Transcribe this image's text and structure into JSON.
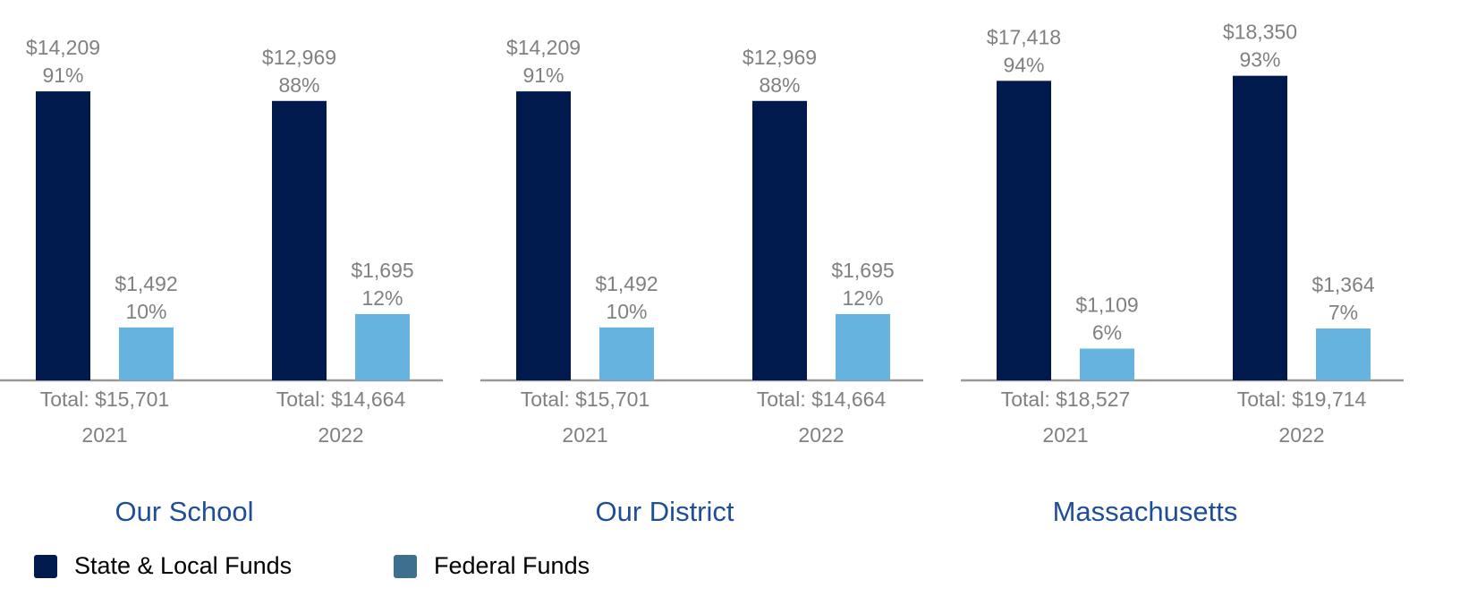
{
  "chart_data": [
    {
      "type": "bar",
      "title": "Our School",
      "categories": [
        "2021",
        "2022"
      ],
      "log": true,
      "ylim": [
        900,
        34000
      ],
      "totals": [
        15701,
        14664
      ],
      "total_labels": [
        "Total: $15,701",
        "Total: $14,664"
      ],
      "series": [
        {
          "name": "State & Local Funds",
          "color": "#001a4d",
          "legend_color": "#001a4d",
          "values": [
            14209,
            12969
          ],
          "value_labels": [
            "$14,209",
            "$12,969"
          ],
          "percents": [
            91,
            88
          ],
          "percent_labels": [
            "91%",
            "88%"
          ]
        },
        {
          "name": "Federal Funds",
          "color": "#66b3e0",
          "legend_color": "#3f6f8f",
          "values": [
            1492,
            1695
          ],
          "value_labels": [
            "$1,492",
            "$1,695"
          ],
          "percents": [
            10,
            12
          ],
          "percent_labels": [
            "10%",
            "12%"
          ]
        }
      ]
    },
    {
      "type": "bar",
      "title": "Our District",
      "categories": [
        "2021",
        "2022"
      ],
      "log": true,
      "ylim": [
        900,
        34000
      ],
      "totals": [
        15701,
        14664
      ],
      "total_labels": [
        "Total: $15,701",
        "Total: $14,664"
      ],
      "series": [
        {
          "color": "#001a4d",
          "values": [
            14209,
            12969
          ],
          "value_labels": [
            "$14,209",
            "$12,969"
          ],
          "percents": [
            91,
            88
          ],
          "percent_labels": [
            "91%",
            "88%"
          ]
        },
        {
          "color": "#66b3e0",
          "values": [
            1492,
            1695
          ],
          "value_labels": [
            "$1,492",
            "$1,695"
          ],
          "percents": [
            10,
            12
          ],
          "percent_labels": [
            "10%",
            "12%"
          ]
        }
      ]
    },
    {
      "type": "bar",
      "title": "Massachusetts",
      "categories": [
        "2021",
        "2022"
      ],
      "log": true,
      "ylim": [
        800,
        40000
      ],
      "totals": [
        18527,
        19714
      ],
      "total_labels": [
        "Total: $18,527",
        "Total: $19,714"
      ],
      "series": [
        {
          "color": "#001a4d",
          "values": [
            17418,
            18350
          ],
          "value_labels": [
            "$17,418",
            "$18,350"
          ],
          "percents": [
            94,
            93
          ],
          "percent_labels": [
            "94%",
            "93%"
          ]
        },
        {
          "color": "#66b3e0",
          "values": [
            1109,
            1364
          ],
          "value_labels": [
            "$1,109",
            "$1,364"
          ],
          "percents": [
            6,
            7
          ],
          "percent_labels": [
            "6%",
            "7%"
          ]
        }
      ]
    }
  ]
}
